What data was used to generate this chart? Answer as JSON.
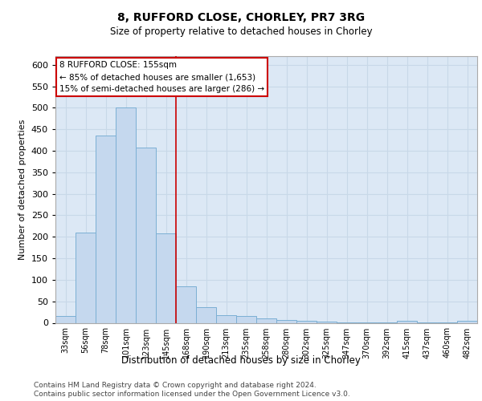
{
  "title1": "8, RUFFORD CLOSE, CHORLEY, PR7 3RG",
  "title2": "Size of property relative to detached houses in Chorley",
  "xlabel": "Distribution of detached houses by size in Chorley",
  "ylabel": "Number of detached properties",
  "categories": [
    "33sqm",
    "56sqm",
    "78sqm",
    "101sqm",
    "123sqm",
    "145sqm",
    "168sqm",
    "190sqm",
    "213sqm",
    "235sqm",
    "258sqm",
    "280sqm",
    "302sqm",
    "325sqm",
    "347sqm",
    "370sqm",
    "392sqm",
    "415sqm",
    "437sqm",
    "460sqm",
    "482sqm"
  ],
  "values": [
    15,
    210,
    435,
    500,
    408,
    207,
    85,
    37,
    17,
    15,
    11,
    6,
    5,
    3,
    1,
    1,
    1,
    4,
    1,
    1,
    5
  ],
  "bar_color": "#c5d8ee",
  "bar_edge_color": "#7bafd4",
  "grid_color": "#c8d8e8",
  "background_color": "#ffffff",
  "plot_bg_color": "#dce8f5",
  "red_line_x": 5.5,
  "annotation_text": "8 RUFFORD CLOSE: 155sqm\n← 85% of detached houses are smaller (1,653)\n15% of semi-detached houses are larger (286) →",
  "annotation_box_color": "#ffffff",
  "annotation_box_edge": "#cc0000",
  "ylim": [
    0,
    620
  ],
  "yticks": [
    0,
    50,
    100,
    150,
    200,
    250,
    300,
    350,
    400,
    450,
    500,
    550,
    600
  ],
  "footer1": "Contains HM Land Registry data © Crown copyright and database right 2024.",
  "footer2": "Contains public sector information licensed under the Open Government Licence v3.0."
}
